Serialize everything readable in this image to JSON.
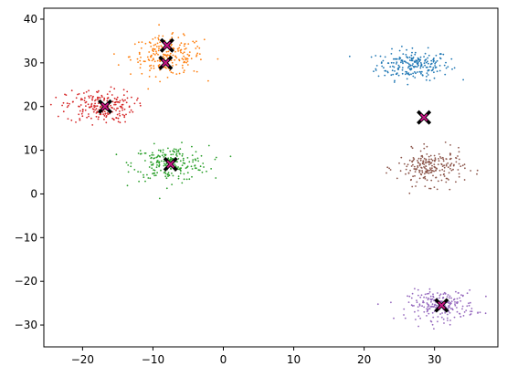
{
  "chart_data": {
    "type": "scatter",
    "title": "",
    "xlabel": "",
    "ylabel": "",
    "xlim": [
      -25.5,
      39
    ],
    "ylim": [
      -35,
      42.5
    ],
    "xticks": [
      -20,
      -10,
      0,
      10,
      20,
      30
    ],
    "yticks": [
      -30,
      -20,
      -10,
      0,
      10,
      20,
      30,
      40
    ],
    "xtick_labels": [
      "−20",
      "−10",
      "0",
      "10",
      "20",
      "30"
    ],
    "ytick_labels": [
      "−30",
      "−20",
      "−10",
      "0",
      "10",
      "20",
      "30",
      "40"
    ],
    "grid": false,
    "legend": "none",
    "clusters": [
      {
        "color": "#1f77b4",
        "center": [
          27,
          29.5
        ],
        "spread": [
          2.6,
          1.7
        ],
        "count": 220
      },
      {
        "color": "#ff7f0e",
        "center": [
          -8,
          31.5
        ],
        "spread": [
          2.6,
          2.2
        ],
        "count": 220
      },
      {
        "color": "#2ca02c",
        "center": [
          -7.5,
          7
        ],
        "spread": [
          2.7,
          2.0
        ],
        "count": 220
      },
      {
        "color": "#d62728",
        "center": [
          -17.5,
          20
        ],
        "spread": [
          2.4,
          1.9
        ],
        "count": 220
      },
      {
        "color": "#9467bd",
        "center": [
          31,
          -25.5
        ],
        "spread": [
          2.4,
          1.7
        ],
        "count": 220
      },
      {
        "color": "#8c564b",
        "center": [
          29.5,
          6
        ],
        "spread": [
          2.4,
          2.0
        ],
        "count": 220
      }
    ],
    "centroids": [
      {
        "x": 28.5,
        "y": 17.5
      },
      {
        "x": -8,
        "y": 34
      },
      {
        "x": -8.2,
        "y": 30
      },
      {
        "x": -7.5,
        "y": 6.8
      },
      {
        "x": -16.8,
        "y": 20
      },
      {
        "x": 31,
        "y": -25.5
      }
    ],
    "centroid_marker": {
      "shape": "X",
      "fill": "#c71585",
      "edge": "#000000"
    }
  }
}
